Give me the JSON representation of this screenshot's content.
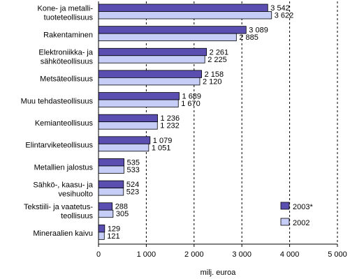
{
  "chart_data": {
    "type": "bar",
    "orientation": "horizontal",
    "categories": [
      [
        "Kone- ja metalli-",
        "tuoteteollisuus"
      ],
      [
        "Rakentaminen"
      ],
      [
        "Elektroniikka- ja",
        "sähköteollisuus"
      ],
      [
        "Metsäteollisuus"
      ],
      [
        "Muu tehdasteollisuus"
      ],
      [
        "Kemianteollisuus"
      ],
      [
        "Elintarviketeollisuus"
      ],
      [
        "Metallien jalostus"
      ],
      [
        "Sähkö-, kaasu- ja",
        "vesihuolto"
      ],
      [
        "Tekstiili- ja vaatetus-",
        "teollisuus"
      ],
      [
        "Mineraalien kaivu"
      ]
    ],
    "series": [
      {
        "name": "2003*",
        "values": [
          3542,
          3089,
          2261,
          2158,
          1689,
          1236,
          1079,
          535,
          524,
          288,
          129
        ],
        "labels": [
          "3 542",
          "3 089",
          "2 261",
          "2 158",
          "1 689",
          "1 236",
          "1 079",
          "535",
          "524",
          "288",
          "129"
        ],
        "color": "#5a4fb0"
      },
      {
        "name": "2002",
        "values": [
          3622,
          2885,
          2225,
          2120,
          1670,
          1232,
          1051,
          533,
          523,
          305,
          121
        ],
        "labels": [
          "3 622",
          "2 885",
          "2 225",
          "2 120",
          "1 670",
          "1 232",
          "1 051",
          "533",
          "523",
          "305",
          "121"
        ],
        "color": "#c6cef7"
      }
    ],
    "xlim": [
      0,
      5000
    ],
    "xticks": [
      0,
      1000,
      2000,
      3000,
      4000,
      5000
    ],
    "xtick_labels": [
      "0",
      "1 000",
      "2 000",
      "3 000",
      "4 000",
      "5 000"
    ],
    "xlabel": "milj. euroa",
    "grid": "vertical dashed",
    "legend_position": "bottom-right"
  }
}
